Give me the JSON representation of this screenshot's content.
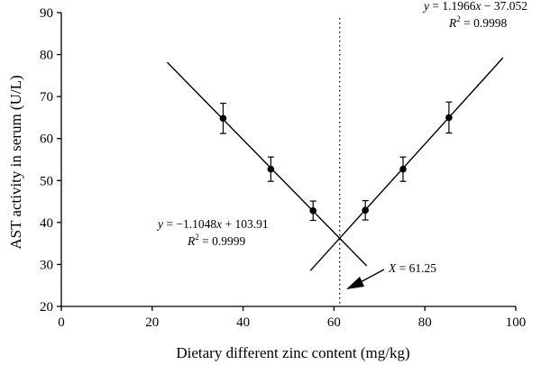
{
  "chart_data": {
    "type": "scatter",
    "xlabel": "Dietary different zinc content (mg/kg)",
    "ylabel": "AST activity in serum (U/L)",
    "xlim": [
      0,
      100
    ],
    "ylim": [
      20,
      90
    ],
    "x_ticks": [
      0,
      20,
      40,
      60,
      80,
      100
    ],
    "y_ticks": [
      20,
      30,
      40,
      50,
      60,
      70,
      80,
      90
    ],
    "grid": false,
    "points": [
      {
        "x": 35.6,
        "y": 64.8,
        "err": 3.6
      },
      {
        "x": 46.1,
        "y": 52.7,
        "err": 2.9
      },
      {
        "x": 55.4,
        "y": 42.8,
        "err": 2.3
      },
      {
        "x": 66.9,
        "y": 42.9,
        "err": 2.3
      },
      {
        "x": 75.2,
        "y": 52.7,
        "err": 2.9
      },
      {
        "x": 85.3,
        "y": 65.0,
        "err": 3.7
      }
    ],
    "fits": [
      {
        "slope": -1.1048,
        "intercept": 103.91,
        "x_range": [
          23.3,
          67.2
        ],
        "equation": "y = −1.1048x + 103.91",
        "r2": "R2 = 0.9999"
      },
      {
        "slope": 1.1966,
        "intercept": -37.052,
        "x_range": [
          54.8,
          97.2
        ],
        "equation": "y = 1.1966x − 37.052",
        "r2": "R2 = 0.9998"
      }
    ],
    "breakpoint": {
      "x": 61.25,
      "label": "X = 61.25"
    }
  },
  "labels": {
    "left_eq_prefix": "y",
    "left_eq_body": " = −1.1048",
    "left_eq_var": "x",
    "left_eq_tail": " + 103.91",
    "left_r2_prefix": "R",
    "left_r2_sup": "2",
    "left_r2_tail": " = 0.9999",
    "right_eq_prefix": "y",
    "right_eq_body": " = 1.1966",
    "right_eq_var": "x",
    "right_eq_tail": " − 37.052",
    "right_r2_prefix": "R",
    "right_r2_sup": "2",
    "right_r2_tail": " = 0.9998",
    "break_var": "X",
    "break_tail": " = 61.25"
  }
}
